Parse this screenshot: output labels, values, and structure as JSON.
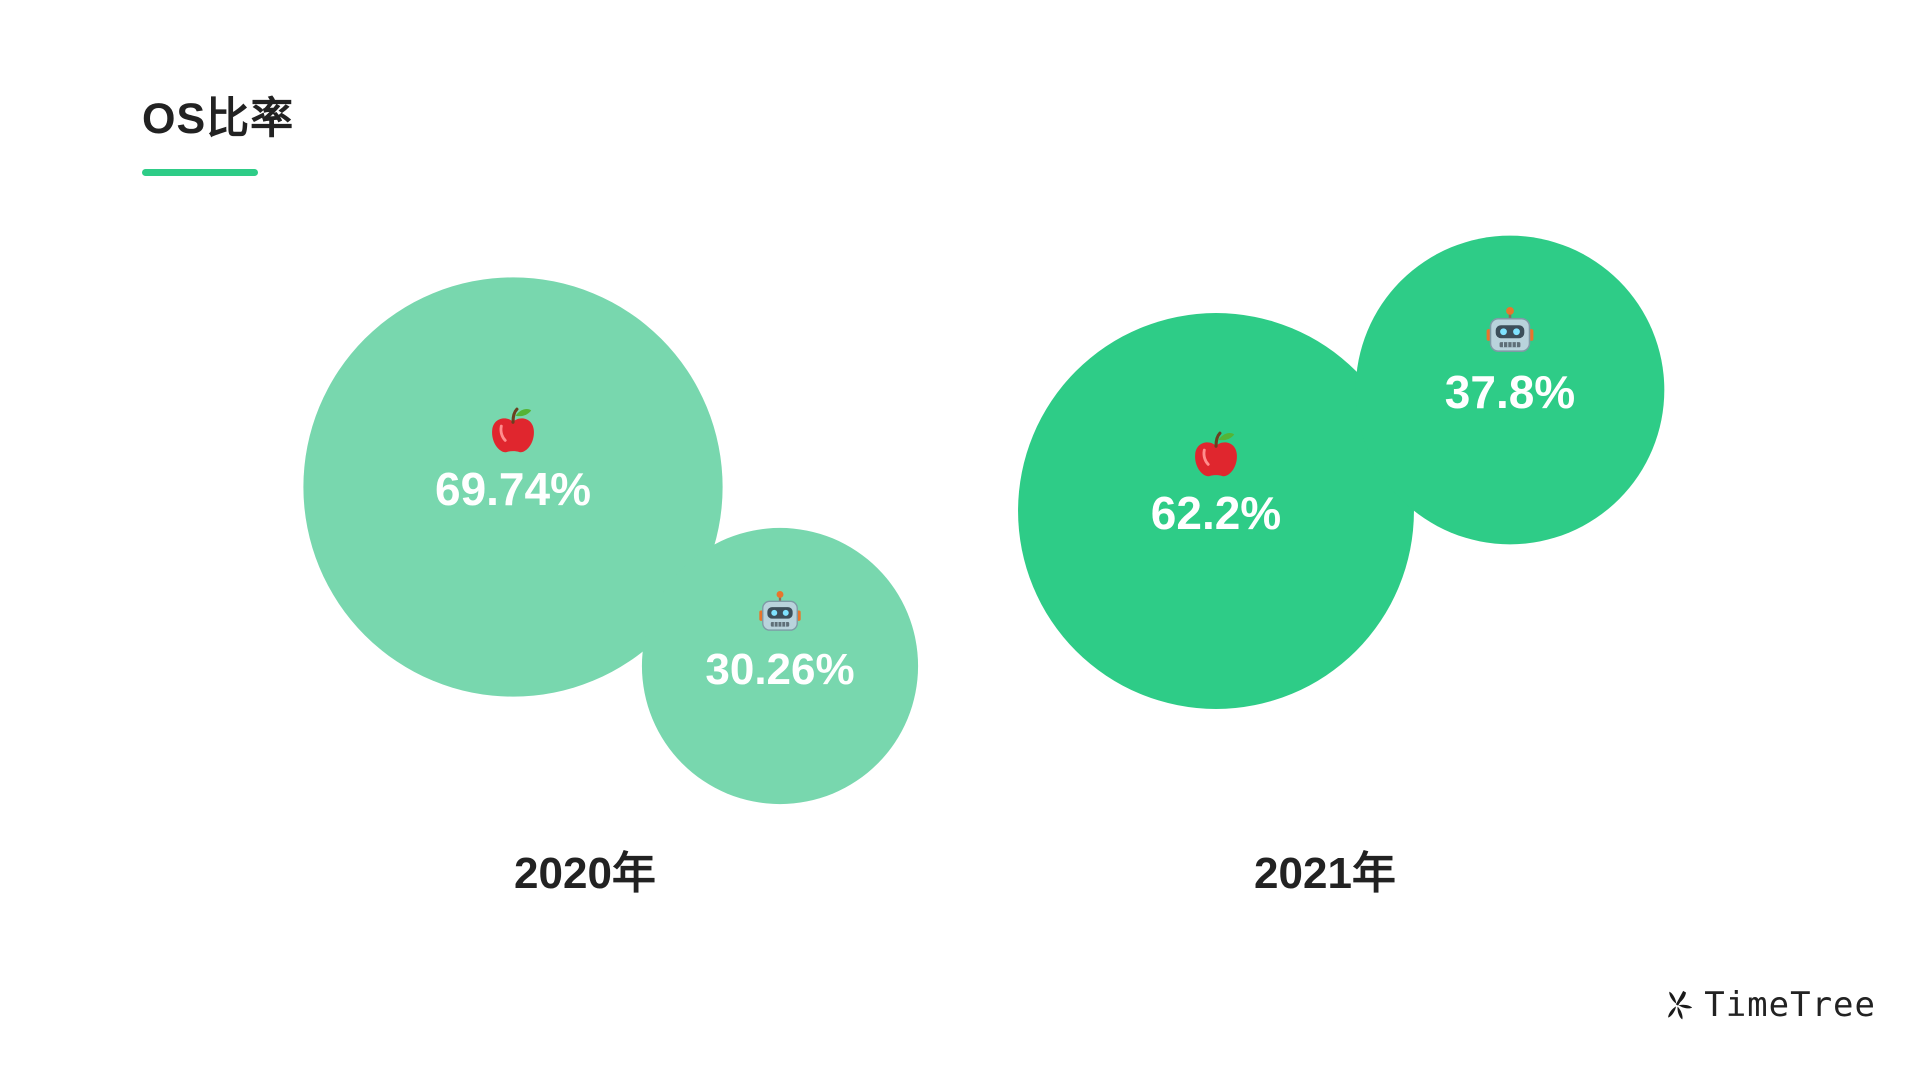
{
  "slide": {
    "title": "OS比率",
    "accent_color": "#2ecc87"
  },
  "chart_data": {
    "type": "bubble",
    "groups": [
      {
        "category": "2020年",
        "color": "#78d7ae",
        "items": [
          {
            "os": "iOS",
            "icon": "apple-icon",
            "value": 69.74,
            "label": "69.74%"
          },
          {
            "os": "Android",
            "icon": "robot-icon",
            "value": 30.26,
            "label": "30.26%"
          }
        ]
      },
      {
        "category": "2021年",
        "color": "#2ecc87",
        "items": [
          {
            "os": "iOS",
            "icon": "apple-icon",
            "value": 62.2,
            "label": "62.2%"
          },
          {
            "os": "Android",
            "icon": "robot-icon",
            "value": 37.8,
            "label": "37.8%"
          }
        ]
      }
    ]
  },
  "brand": {
    "name": "TimeTree",
    "icon": "timetree-logo-icon"
  }
}
